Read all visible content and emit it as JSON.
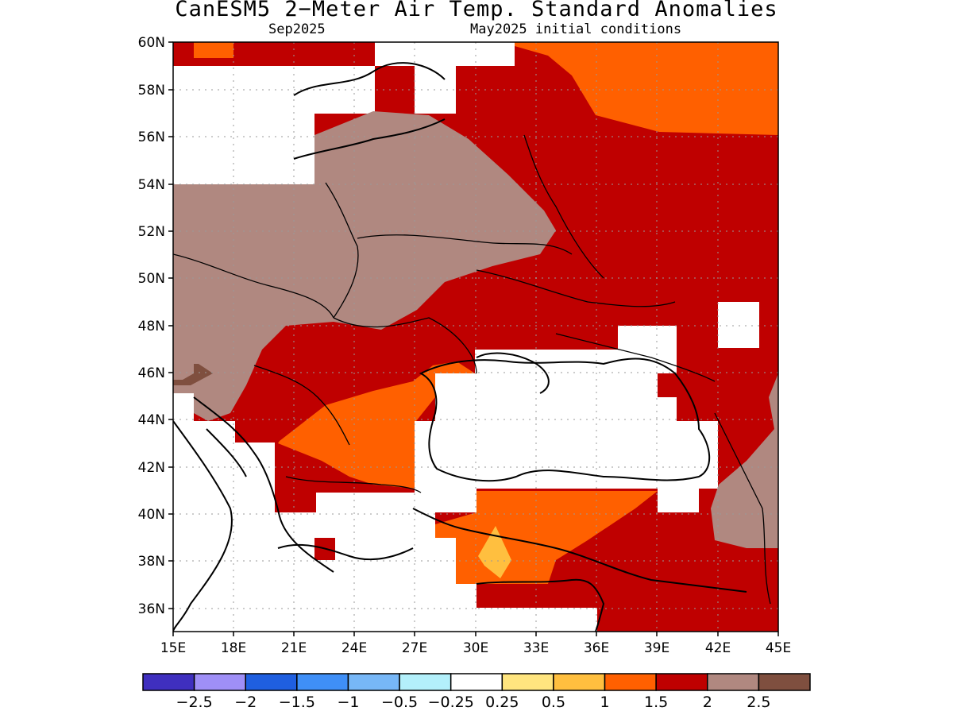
{
  "title": "CanESM5 2−Meter Air Temp. Standard Anomalies",
  "subtitle_left": "Sep2025",
  "subtitle_right": "May2025 initial conditions",
  "map": {
    "lon_range": [
      "15E",
      "45E"
    ],
    "lat_range": [
      "35N",
      "60N"
    ],
    "x_ticks": [
      "15E",
      "18E",
      "21E",
      "24E",
      "27E",
      "30E",
      "33E",
      "36E",
      "39E",
      "42E",
      "45E"
    ],
    "y_ticks": [
      "60N",
      "58N",
      "56N",
      "54N",
      "52N",
      "50N",
      "48N",
      "46N",
      "44N",
      "42N",
      "40N",
      "38N",
      "36N"
    ],
    "grid": "dotted"
  },
  "colorbar": {
    "colors": [
      "#3f2fbf",
      "#9f8ff7",
      "#1f5fe0",
      "#3f8ff7",
      "#77b7f7",
      "#b3f0fb",
      "#ffffff",
      "#ffe57f",
      "#ffbf3f",
      "#ff6000",
      "#bf0000",
      "#b08880",
      "#7f4f3f"
    ],
    "labels": [
      "−2.5",
      "−2",
      "−1.5",
      "−1",
      "−0.5",
      "−0.25",
      "0.25",
      "0.5",
      "1",
      "1.5",
      "2",
      "2.5"
    ]
  }
}
